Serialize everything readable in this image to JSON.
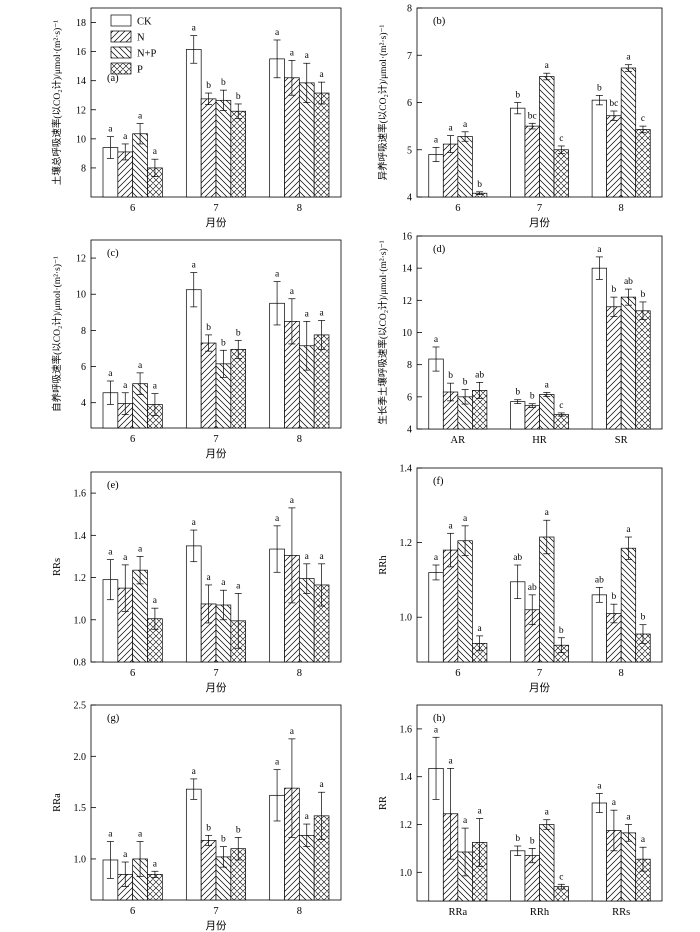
{
  "legend": [
    {
      "name": "CK",
      "fill": "white"
    },
    {
      "name": "N",
      "fill": "diag-right"
    },
    {
      "name": "N+P",
      "fill": "diag-left"
    },
    {
      "name": "P",
      "fill": "cross"
    }
  ],
  "chart_data": [
    {
      "panel": "(a)",
      "type": "bar",
      "ylabel": "土壤总呼吸速率(以CO₂计)/μmol·(m²·s)⁻¹",
      "xlabel": "月份",
      "categories": [
        "6",
        "7",
        "8"
      ],
      "ylim": [
        6,
        19
      ],
      "yticks": [
        8,
        10,
        12,
        14,
        16,
        18
      ],
      "series": [
        {
          "name": "CK",
          "values": [
            9.4,
            16.15,
            15.5
          ],
          "errors": [
            0.75,
            0.95,
            1.3
          ],
          "labels": [
            "a",
            "a",
            "a"
          ]
        },
        {
          "name": "N",
          "values": [
            9.1,
            12.75,
            14.2
          ],
          "errors": [
            0.55,
            0.4,
            1.2
          ],
          "labels": [
            "a",
            "b",
            "a"
          ]
        },
        {
          "name": "N+P",
          "values": [
            10.35,
            12.65,
            13.85
          ],
          "errors": [
            0.7,
            0.7,
            1.35
          ],
          "labels": [
            "a",
            "b",
            "a"
          ]
        },
        {
          "name": "P",
          "values": [
            8.0,
            11.9,
            13.15
          ],
          "errors": [
            0.6,
            0.5,
            0.75
          ],
          "labels": [
            "a",
            "b",
            "a"
          ]
        }
      ]
    },
    {
      "panel": "(b)",
      "type": "bar",
      "ylabel": "异养呼吸速率(以CO₂计)/μmol·(m²·s)⁻¹",
      "xlabel": "月份",
      "categories": [
        "6",
        "7",
        "8"
      ],
      "ylim": [
        4,
        8
      ],
      "yticks": [
        4,
        5,
        6,
        7,
        8
      ],
      "series": [
        {
          "name": "CK",
          "values": [
            4.9,
            5.88,
            6.05
          ],
          "errors": [
            0.15,
            0.12,
            0.1
          ],
          "labels": [
            "a",
            "b",
            "b"
          ]
        },
        {
          "name": "N",
          "values": [
            5.12,
            5.5,
            5.72
          ],
          "errors": [
            0.18,
            0.06,
            0.1
          ],
          "labels": [
            "a",
            "bc",
            "bc"
          ]
        },
        {
          "name": "N+P",
          "values": [
            5.28,
            6.55,
            6.73
          ],
          "errors": [
            0.1,
            0.07,
            0.07
          ],
          "labels": [
            "a",
            "a",
            "a"
          ]
        },
        {
          "name": "P",
          "values": [
            4.08,
            5.0,
            5.43
          ],
          "errors": [
            0.03,
            0.08,
            0.07
          ],
          "labels": [
            "b",
            "c",
            "c"
          ]
        }
      ]
    },
    {
      "panel": "(c)",
      "type": "bar",
      "ylabel": "自养呼吸速率(以CO₂计)/μmol·(m²·s)⁻¹",
      "xlabel": "月份",
      "categories": [
        "6",
        "7",
        "8"
      ],
      "ylim": [
        2.6,
        13
      ],
      "yticks": [
        4,
        6,
        8,
        10,
        12
      ],
      "series": [
        {
          "name": "CK",
          "values": [
            4.55,
            10.25,
            9.5
          ],
          "errors": [
            0.65,
            0.95,
            1.2
          ],
          "labels": [
            "a",
            "a",
            "a"
          ]
        },
        {
          "name": "N",
          "values": [
            3.95,
            7.3,
            8.5
          ],
          "errors": [
            0.6,
            0.45,
            1.25
          ],
          "labels": [
            "a",
            "b",
            "a"
          ]
        },
        {
          "name": "N+P",
          "values": [
            5.05,
            6.15,
            7.15
          ],
          "errors": [
            0.6,
            0.75,
            1.35
          ],
          "labels": [
            "a",
            "b",
            "a"
          ]
        },
        {
          "name": "P",
          "values": [
            3.9,
            6.95,
            7.75
          ],
          "errors": [
            0.6,
            0.5,
            0.8
          ],
          "labels": [
            "a",
            "b",
            "a"
          ]
        }
      ]
    },
    {
      "panel": "(d)",
      "type": "bar",
      "ylabel": "生长季土壤呼吸速率(以CO₂计)/μmol·(m²·s)⁻¹",
      "xlabel": "",
      "categories": [
        "AR",
        "HR",
        "SR"
      ],
      "ylim": [
        4,
        16
      ],
      "yticks": [
        4,
        6,
        8,
        10,
        12,
        14,
        16
      ],
      "series": [
        {
          "name": "CK",
          "values": [
            8.35,
            5.7,
            14.0
          ],
          "errors": [
            0.75,
            0.12,
            0.7
          ],
          "labels": [
            "a",
            "b",
            "a"
          ]
        },
        {
          "name": "N",
          "values": [
            6.3,
            5.45,
            11.6
          ],
          "errors": [
            0.55,
            0.12,
            0.6
          ],
          "labels": [
            "b",
            "b",
            "b"
          ]
        },
        {
          "name": "N+P",
          "values": [
            6.0,
            6.15,
            12.2
          ],
          "errors": [
            0.45,
            0.12,
            0.5
          ],
          "labels": [
            "b",
            "a",
            "ab"
          ]
        },
        {
          "name": "P",
          "values": [
            6.4,
            4.9,
            11.35
          ],
          "errors": [
            0.5,
            0.1,
            0.55
          ],
          "labels": [
            "ab",
            "c",
            "b"
          ]
        }
      ]
    },
    {
      "panel": "(e)",
      "type": "bar",
      "ylabel": "RRs",
      "xlabel": "月份",
      "categories": [
        "6",
        "7",
        "8"
      ],
      "ylim": [
        0.8,
        1.7
      ],
      "yticks": [
        0.8,
        1.0,
        1.2,
        1.4,
        1.6
      ],
      "series": [
        {
          "name": "CK",
          "values": [
            1.19,
            1.35,
            1.335
          ],
          "errors": [
            0.095,
            0.075,
            0.11
          ],
          "labels": [
            "a",
            "a",
            "a"
          ]
        },
        {
          "name": "N",
          "values": [
            1.15,
            1.075,
            1.305
          ],
          "errors": [
            0.11,
            0.09,
            0.225
          ],
          "labels": [
            "a",
            "a",
            "a"
          ]
        },
        {
          "name": "N+P",
          "values": [
            1.235,
            1.07,
            1.195
          ],
          "errors": [
            0.065,
            0.07,
            0.07
          ],
          "labels": [
            "a",
            "a",
            "a"
          ]
        },
        {
          "name": "P",
          "values": [
            1.005,
            0.995,
            1.165
          ],
          "errors": [
            0.05,
            0.13,
            0.1
          ],
          "labels": [
            "a",
            "a",
            "a"
          ]
        }
      ]
    },
    {
      "panel": "(f)",
      "type": "bar",
      "ylabel": "RRh",
      "xlabel": "月份",
      "categories": [
        "6",
        "7",
        "8"
      ],
      "ylim": [
        0.88,
        1.4
      ],
      "yticks": [
        1.0,
        1.2,
        1.4
      ],
      "series": [
        {
          "name": "CK",
          "values": [
            1.12,
            1.095,
            1.06
          ],
          "errors": [
            0.02,
            0.045,
            0.02
          ],
          "labels": [
            "a",
            "ab",
            "ab"
          ]
        },
        {
          "name": "N",
          "values": [
            1.18,
            1.02,
            1.01
          ],
          "errors": [
            0.045,
            0.04,
            0.025
          ],
          "labels": [
            "a",
            "ab",
            "b"
          ]
        },
        {
          "name": "N+P",
          "values": [
            1.205,
            1.215,
            1.185
          ],
          "errors": [
            0.04,
            0.045,
            0.03
          ],
          "labels": [
            "a",
            "a",
            "a"
          ]
        },
        {
          "name": "P",
          "values": [
            0.93,
            0.925,
            0.955
          ],
          "errors": [
            0.02,
            0.02,
            0.025
          ],
          "labels": [
            "a",
            "b",
            "b"
          ]
        }
      ]
    },
    {
      "panel": "(g)",
      "type": "bar",
      "ylabel": "RRa",
      "xlabel": "月份",
      "categories": [
        "6",
        "7",
        "8"
      ],
      "ylim": [
        0.6,
        2.5
      ],
      "yticks": [
        1.0,
        1.5,
        2.0,
        2.5
      ],
      "series": [
        {
          "name": "CK",
          "values": [
            0.99,
            1.68,
            1.62
          ],
          "errors": [
            0.18,
            0.1,
            0.25
          ],
          "labels": [
            "a",
            "a",
            "a"
          ]
        },
        {
          "name": "N",
          "values": [
            0.85,
            1.18,
            1.69
          ],
          "errors": [
            0.12,
            0.05,
            0.48
          ],
          "labels": [
            "a",
            "b",
            "a"
          ]
        },
        {
          "name": "N+P",
          "values": [
            1.0,
            1.02,
            1.23
          ],
          "errors": [
            0.17,
            0.1,
            0.11
          ],
          "labels": [
            "a",
            "b",
            "a"
          ]
        },
        {
          "name": "P",
          "values": [
            0.85,
            1.1,
            1.42
          ],
          "errors": [
            0.03,
            0.11,
            0.23
          ],
          "labels": [
            "a",
            "b",
            "a"
          ]
        }
      ]
    },
    {
      "panel": "(h)",
      "type": "bar",
      "ylabel": "RR",
      "xlabel": "",
      "categories": [
        "RRa",
        "RRh",
        "RRs"
      ],
      "ylim": [
        0.88,
        1.7
      ],
      "yticks": [
        1.0,
        1.2,
        1.4,
        1.6
      ],
      "series": [
        {
          "name": "CK",
          "values": [
            1.435,
            1.09,
            1.29
          ],
          "errors": [
            0.13,
            0.02,
            0.04
          ],
          "labels": [
            "a",
            "b",
            "a"
          ]
        },
        {
          "name": "N",
          "values": [
            1.245,
            1.07,
            1.175
          ],
          "errors": [
            0.19,
            0.03,
            0.085
          ],
          "labels": [
            "a",
            "b",
            "a"
          ]
        },
        {
          "name": "N+P",
          "values": [
            1.085,
            1.2,
            1.165
          ],
          "errors": [
            0.1,
            0.02,
            0.035
          ],
          "labels": [
            "a",
            "a",
            "a"
          ]
        },
        {
          "name": "P",
          "values": [
            1.125,
            0.94,
            1.055
          ],
          "errors": [
            0.1,
            0.01,
            0.05
          ],
          "labels": [
            "a",
            "c",
            "a"
          ]
        }
      ]
    }
  ]
}
